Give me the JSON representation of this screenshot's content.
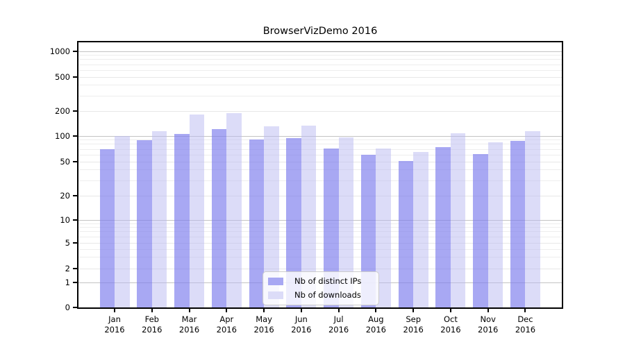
{
  "chart_data": {
    "type": "bar",
    "title": "BrowserVizDemo 2016",
    "categories": [
      "Jan",
      "Feb",
      "Mar",
      "Apr",
      "May",
      "Jun",
      "Jul",
      "Aug",
      "Sep",
      "Oct",
      "Nov",
      "Dec"
    ],
    "category_year": "2016",
    "series": [
      {
        "name": "Nb of distinct IPs",
        "color": "#a8a8f3",
        "fill": "rgba(123,123,237,0.66)",
        "values": [
          70,
          90,
          105,
          121,
          91,
          94,
          72,
          60,
          51,
          74,
          62,
          87
        ]
      },
      {
        "name": "Nb of downloads",
        "color": "#dcdcf8",
        "fill": "rgba(185,185,241,0.5)",
        "values": [
          100,
          115,
          182,
          188,
          130,
          133,
          97,
          71,
          65,
          108,
          84,
          114
        ]
      }
    ],
    "yscale": "log",
    "yticks": [
      1000,
      500,
      200,
      100,
      50,
      20,
      10,
      5,
      2,
      1,
      0
    ],
    "ylim": [
      0,
      1280
    ],
    "grid": true,
    "legend_position": "lower center",
    "colors": {
      "major_gridline": "#c3c3c3",
      "minor_gridline": "#ededed",
      "labeled_minor_gridline": "#e7e7e7",
      "axis": "#000000"
    }
  }
}
